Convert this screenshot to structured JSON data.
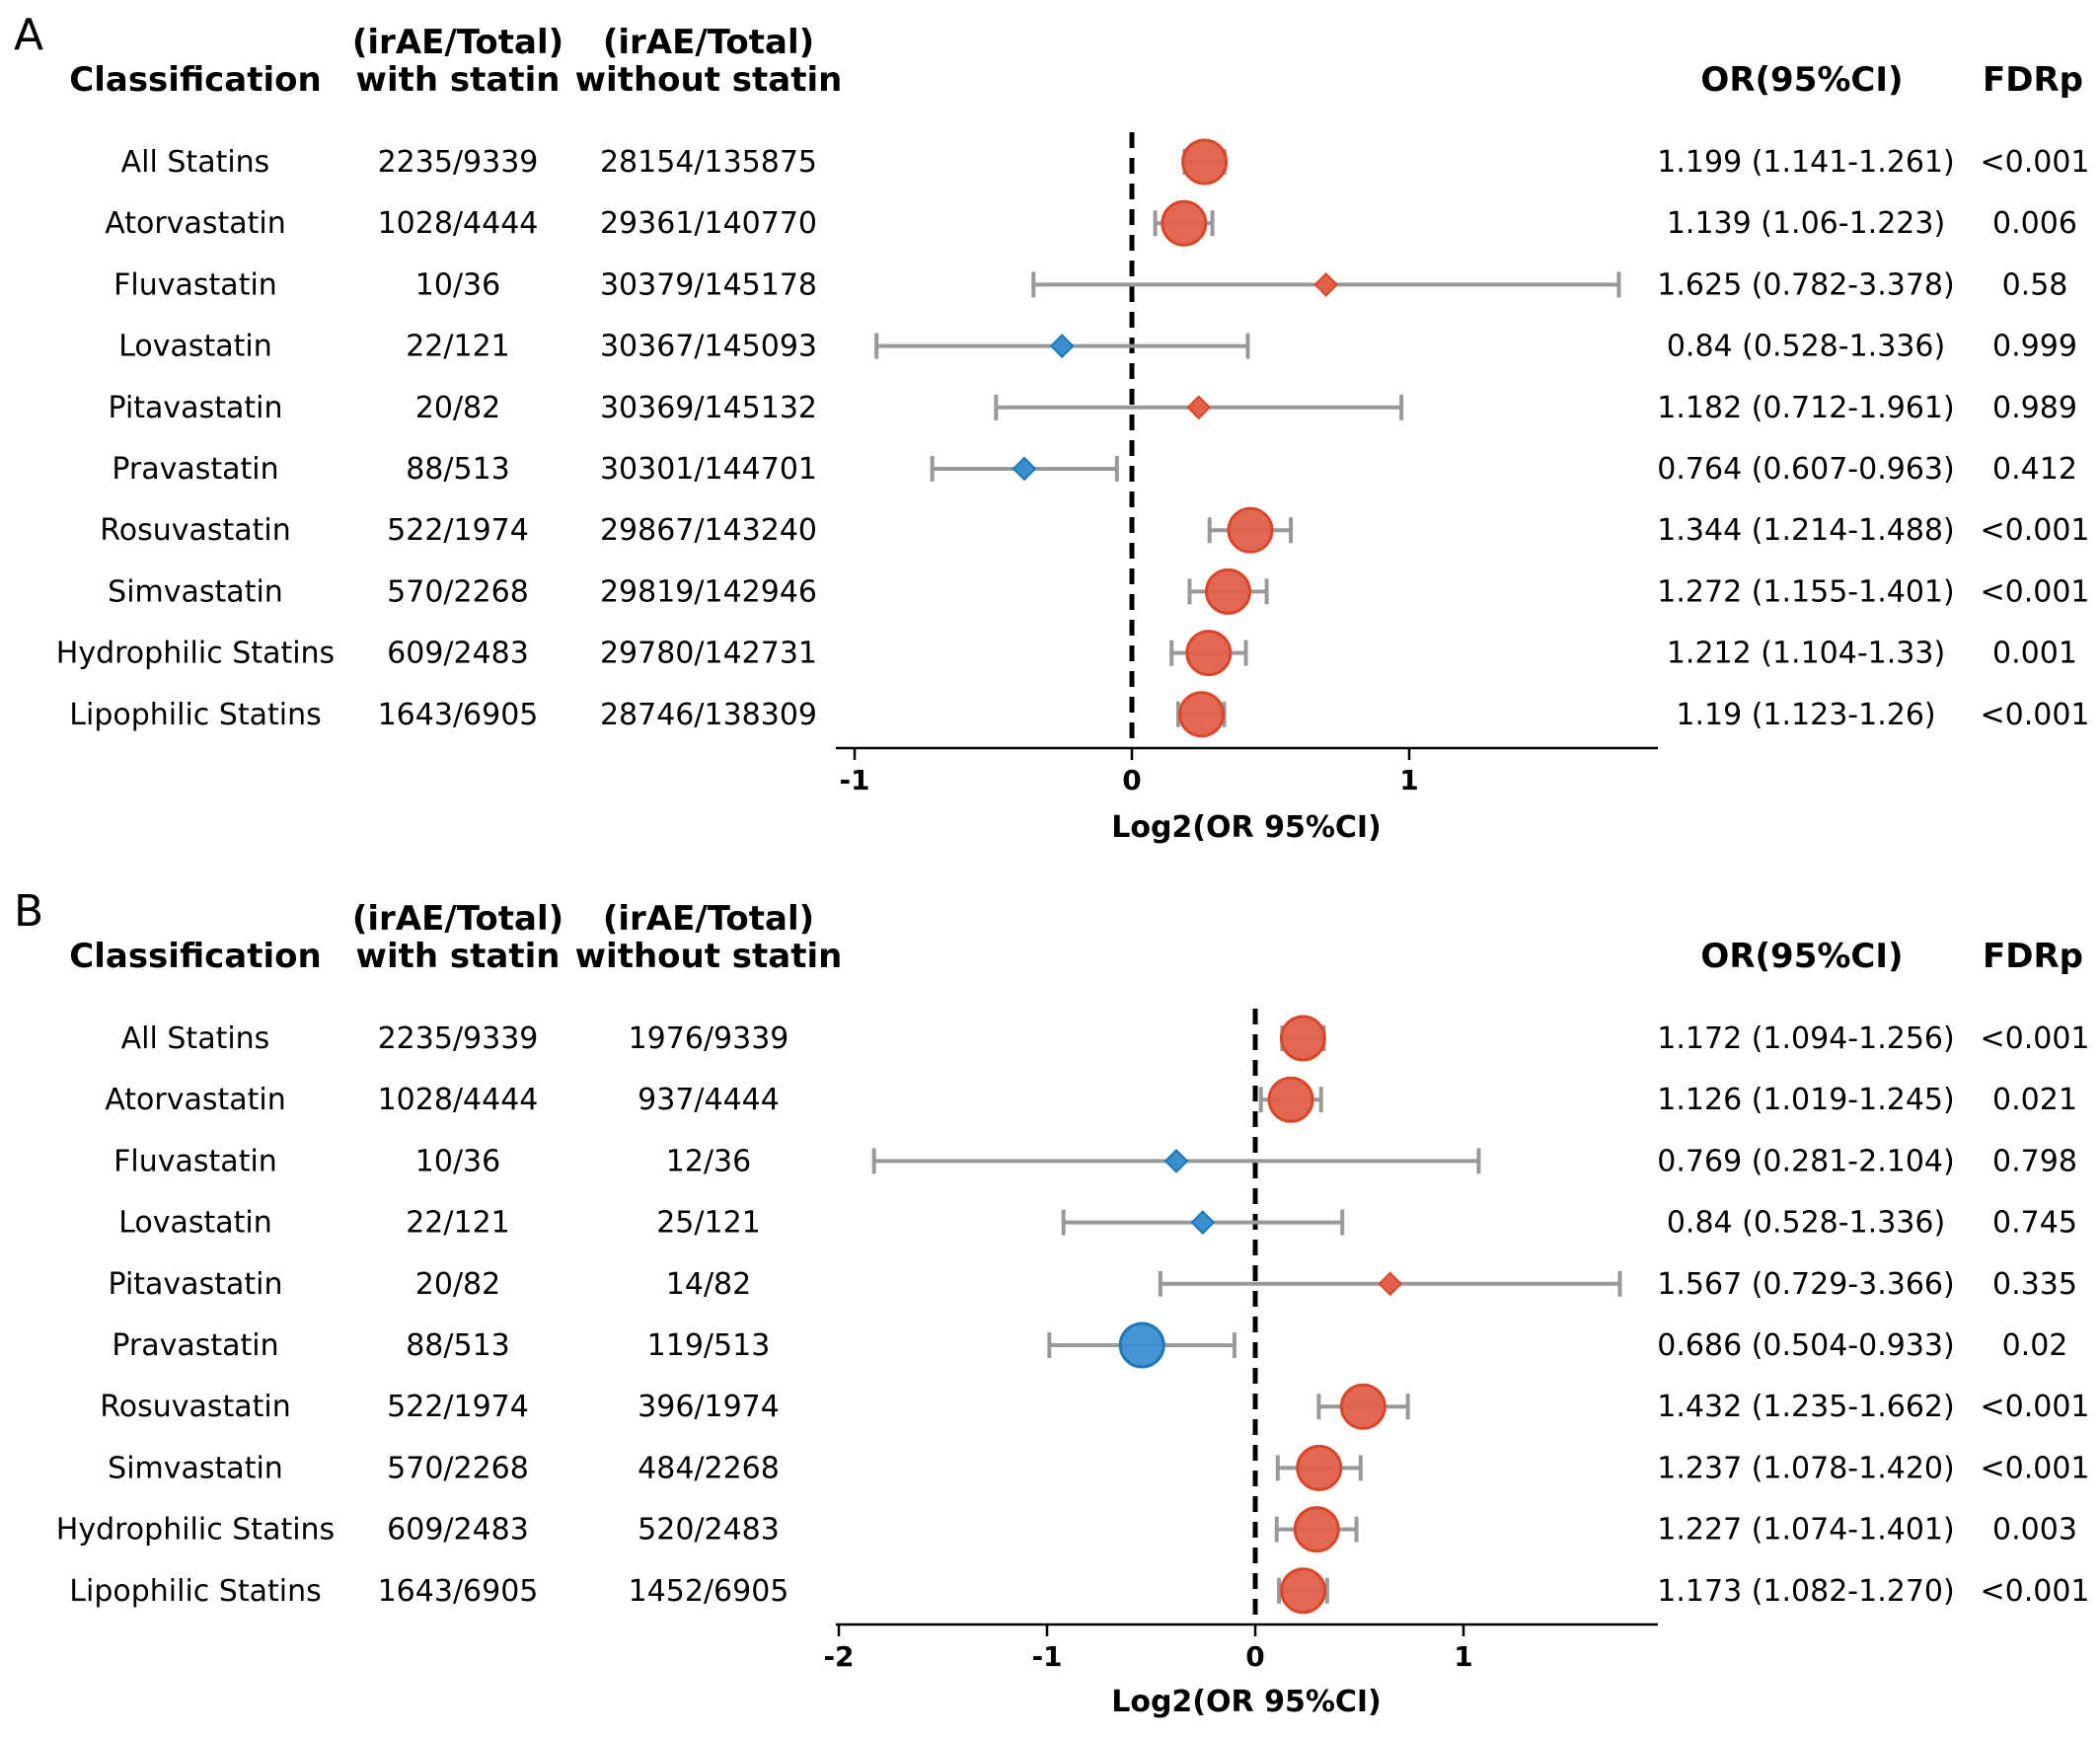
{
  "chart_data": [
    {
      "type": "forest",
      "panel": "A",
      "headers": {
        "classification": "Classification",
        "with_statin": [
          "(irAE/Total)",
          "with statin"
        ],
        "without_statin": [
          "(irAE/Total)",
          "without statin"
        ],
        "or": "OR(95%CI)",
        "fdr": "FDRp"
      },
      "xlabel": "Log2(OR 95%CI)",
      "xlim": [
        -1.0,
        1.9
      ],
      "xticks": [
        "-1",
        "0",
        "1"
      ],
      "xtick_values": [
        -1,
        0,
        1
      ],
      "rows": [
        {
          "name": "All Statins",
          "with": "2235/9339",
          "without": "28154/135875",
          "or_text": "1.199 (1.141-1.261)",
          "fdr": "<0.001",
          "log2or": 0.262,
          "lo": 0.19,
          "hi": 0.334,
          "significant": true,
          "direction": "up"
        },
        {
          "name": "Atorvastatin",
          "with": "1028/4444",
          "without": "29361/140770",
          "or_text": "1.139 (1.06-1.223)",
          "fdr": "0.006",
          "log2or": 0.188,
          "lo": 0.084,
          "hi": 0.29,
          "significant": true,
          "direction": "up"
        },
        {
          "name": "Fluvastatin",
          "with": "10/36",
          "without": "30379/145178",
          "or_text": "1.625 (0.782-3.378)",
          "fdr": "0.58",
          "log2or": 0.7,
          "lo": -0.355,
          "hi": 1.756,
          "significant": false,
          "direction": "up"
        },
        {
          "name": "Lovastatin",
          "with": "22/121",
          "without": "30367/145093",
          "or_text": "0.84 (0.528-1.336)",
          "fdr": "0.999",
          "log2or": -0.252,
          "lo": -0.921,
          "hi": 0.418,
          "significant": false,
          "direction": "down"
        },
        {
          "name": "Pitavastatin",
          "with": "20/82",
          "without": "30369/145132",
          "or_text": "1.182 (0.712-1.961)",
          "fdr": "0.989",
          "log2or": 0.241,
          "lo": -0.49,
          "hi": 0.972,
          "significant": false,
          "direction": "up"
        },
        {
          "name": "Pravastatin",
          "with": "88/513",
          "without": "30301/144701",
          "or_text": "0.764 (0.607-0.963)",
          "fdr": "0.412",
          "log2or": -0.388,
          "lo": -0.72,
          "hi": -0.054,
          "significant": false,
          "direction": "down"
        },
        {
          "name": "Rosuvastatin",
          "with": "522/1974",
          "without": "29867/143240",
          "or_text": "1.344 (1.214-1.488)",
          "fdr": "<0.001",
          "log2or": 0.427,
          "lo": 0.28,
          "hi": 0.573,
          "significant": true,
          "direction": "up"
        },
        {
          "name": "Simvastatin",
          "with": "570/2268",
          "without": "29819/142946",
          "or_text": "1.272 (1.155-1.401)",
          "fdr": "<0.001",
          "log2or": 0.347,
          "lo": 0.208,
          "hi": 0.486,
          "significant": true,
          "direction": "up"
        },
        {
          "name": "Hydrophilic Statins",
          "with": "609/2483",
          "without": "29780/142731",
          "or_text": "1.212 (1.104-1.33)",
          "fdr": "0.001",
          "log2or": 0.277,
          "lo": 0.143,
          "hi": 0.411,
          "significant": true,
          "direction": "up"
        },
        {
          "name": "Lipophilic Statins",
          "with": "1643/6905",
          "without": "28746/138309",
          "or_text": "1.19 (1.123-1.26)",
          "fdr": "<0.001",
          "log2or": 0.251,
          "lo": 0.167,
          "hi": 0.333,
          "significant": true,
          "direction": "up"
        }
      ]
    },
    {
      "type": "forest",
      "panel": "B",
      "headers": {
        "classification": "Classification",
        "with_statin": [
          "(irAE/Total)",
          "with statin"
        ],
        "without_statin": [
          "(irAE/Total)",
          "without statin"
        ],
        "or": "OR(95%CI)",
        "fdr": "FDRp"
      },
      "xlabel": "Log2(OR 95%CI)",
      "xlim": [
        -2.0,
        1.93
      ],
      "xticks": [
        "-2",
        "-1",
        "0",
        "1"
      ],
      "xtick_values": [
        -2,
        -1,
        0,
        1
      ],
      "rows": [
        {
          "name": "All Statins",
          "with": "2235/9339",
          "without": "1976/9339",
          "or_text": "1.172 (1.094-1.256)",
          "fdr": "<0.001",
          "log2or": 0.229,
          "lo": 0.13,
          "hi": 0.329,
          "significant": true,
          "direction": "up"
        },
        {
          "name": "Atorvastatin",
          "with": "1028/4444",
          "without": "937/4444",
          "or_text": "1.126 (1.019-1.245)",
          "fdr": "0.021",
          "log2or": 0.171,
          "lo": 0.027,
          "hi": 0.316,
          "significant": true,
          "direction": "up"
        },
        {
          "name": "Fluvastatin",
          "with": "10/36",
          "without": "12/36",
          "or_text": "0.769 (0.281-2.104)",
          "fdr": "0.798",
          "log2or": -0.379,
          "lo": -1.831,
          "hi": 1.073,
          "significant": false,
          "direction": "down"
        },
        {
          "name": "Lovastatin",
          "with": "22/121",
          "without": "25/121",
          "or_text": "0.84 (0.528-1.336)",
          "fdr": "0.745",
          "log2or": -0.252,
          "lo": -0.921,
          "hi": 0.418,
          "significant": false,
          "direction": "down"
        },
        {
          "name": "Pitavastatin",
          "with": "20/82",
          "without": "14/82",
          "or_text": "1.567 (0.729-3.366)",
          "fdr": "0.335",
          "log2or": 0.648,
          "lo": -0.456,
          "hi": 1.751,
          "significant": false,
          "direction": "up"
        },
        {
          "name": "Pravastatin",
          "with": "88/513",
          "without": "119/513",
          "or_text": "0.686 (0.504-0.933)",
          "fdr": "0.02",
          "log2or": -0.544,
          "lo": -0.989,
          "hi": -0.1,
          "significant": true,
          "direction": "down"
        },
        {
          "name": "Rosuvastatin",
          "with": "522/1974",
          "without": "396/1974",
          "or_text": "1.432 (1.235-1.662)",
          "fdr": "<0.001",
          "log2or": 0.518,
          "lo": 0.305,
          "hi": 0.733,
          "significant": true,
          "direction": "up"
        },
        {
          "name": "Simvastatin",
          "with": "570/2268",
          "without": "484/2268",
          "or_text": "1.237 (1.078-1.420)",
          "fdr": "<0.001",
          "log2or": 0.307,
          "lo": 0.108,
          "hi": 0.506,
          "significant": true,
          "direction": "up"
        },
        {
          "name": "Hydrophilic Statins",
          "with": "609/2483",
          "without": "520/2483",
          "or_text": "1.227 (1.074-1.401)",
          "fdr": "0.003",
          "log2or": 0.295,
          "lo": 0.103,
          "hi": 0.486,
          "significant": true,
          "direction": "up"
        },
        {
          "name": "Lipophilic Statins",
          "with": "1643/6905",
          "without": "1452/6905",
          "or_text": "1.173 (1.082-1.270)",
          "fdr": "<0.001",
          "log2or": 0.23,
          "lo": 0.114,
          "hi": 0.345,
          "significant": true,
          "direction": "up"
        }
      ]
    }
  ],
  "colors": {
    "increased_risk": "#d9472b",
    "increased_risk_fill": "#e0604a",
    "decreased_risk": "#1f77b4",
    "decreased_risk_fill": "#3a8fd0",
    "ci_line": "#999999",
    "reference_line": "#000000"
  }
}
